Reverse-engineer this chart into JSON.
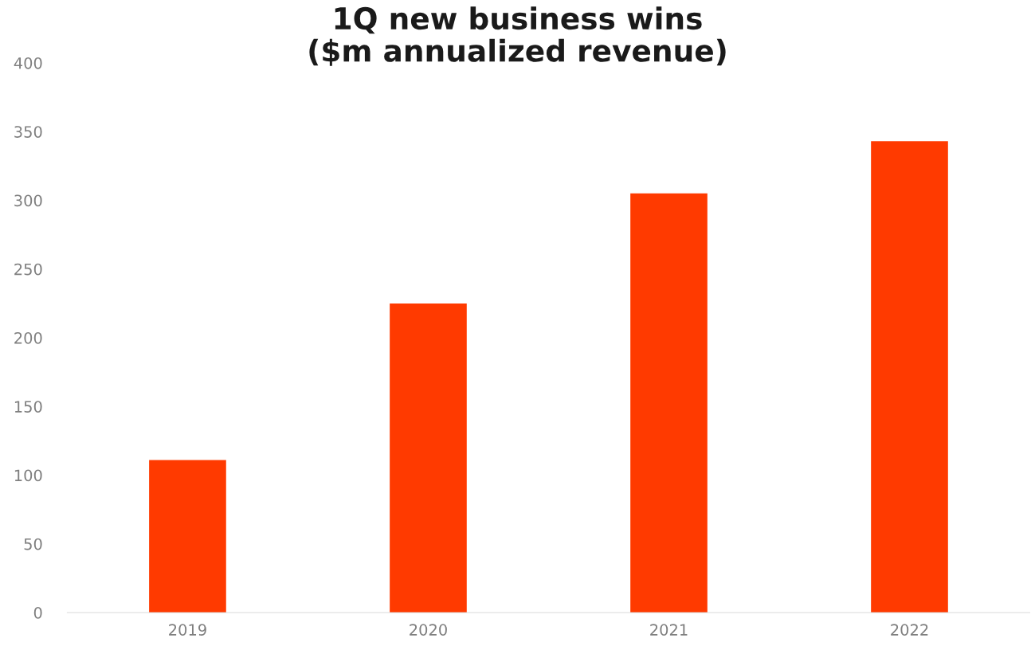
{
  "chart_data": {
    "type": "bar",
    "title": "1Q new business wins\n($m annualized revenue)",
    "categories": [
      "2019",
      "2020",
      "2021",
      "2022"
    ],
    "values": [
      111,
      225,
      305,
      343
    ],
    "color": "#ff3a00",
    "ylim": [
      0,
      400
    ],
    "yticks": [
      0,
      50,
      100,
      150,
      200,
      250,
      300,
      350,
      400
    ],
    "grid": false
  }
}
